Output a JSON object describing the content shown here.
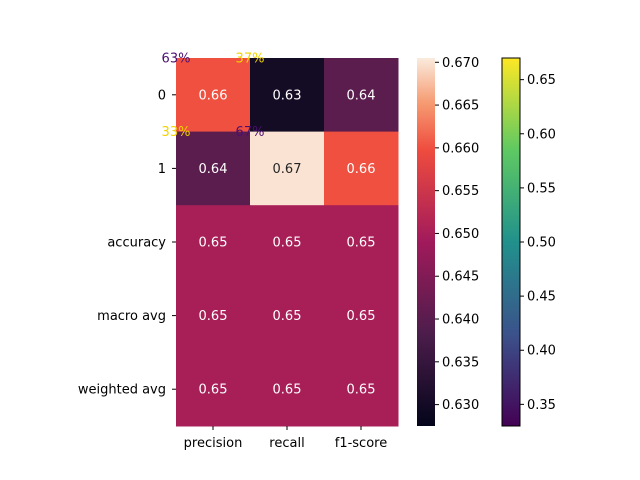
{
  "chart_data": {
    "type": "heatmap",
    "rows": [
      "0",
      "1",
      "accuracy",
      "macro avg",
      "weighted avg"
    ],
    "columns": [
      "precision",
      "recall",
      "f1-score"
    ],
    "values": [
      [
        0.66,
        0.63,
        0.64
      ],
      [
        0.64,
        0.67,
        0.66
      ],
      [
        0.65,
        0.65,
        0.65
      ],
      [
        0.65,
        0.65,
        0.65
      ],
      [
        0.65,
        0.65,
        0.65
      ]
    ],
    "cell_labels": [
      [
        "0.66",
        "0.63",
        "0.64"
      ],
      [
        "0.64",
        "0.67",
        "0.66"
      ],
      [
        "0.65",
        "0.65",
        "0.65"
      ],
      [
        "0.65",
        "0.65",
        "0.65"
      ],
      [
        "0.65",
        "0.65",
        "0.65"
      ]
    ],
    "overlay_labels": [
      {
        "text": "63%",
        "row": 0,
        "col": 0,
        "color": "#4b0f70"
      },
      {
        "text": "37%",
        "row": 0,
        "col": 1,
        "color": "#f2d300"
      },
      {
        "text": "33%",
        "row": 1,
        "col": 0,
        "color": "#f2d300"
      },
      {
        "text": "67%",
        "row": 1,
        "col": 1,
        "color": "#4b0f70"
      }
    ],
    "colorbars": [
      {
        "colormap": "rocket",
        "range": [
          0.6275,
          0.6705
        ],
        "ticks": [
          0.63,
          0.635,
          0.64,
          0.645,
          0.65,
          0.655,
          0.66,
          0.665,
          0.67
        ],
        "tick_labels": [
          "0.630",
          "0.635",
          "0.640",
          "0.645",
          "0.650",
          "0.655",
          "0.660",
          "0.665",
          "0.670"
        ]
      },
      {
        "colormap": "viridis",
        "range": [
          0.33,
          0.67
        ],
        "ticks": [
          0.35,
          0.4,
          0.45,
          0.5,
          0.55,
          0.6,
          0.65
        ],
        "tick_labels": [
          "0.35",
          "0.40",
          "0.45",
          "0.50",
          "0.55",
          "0.60",
          "0.65"
        ]
      }
    ]
  }
}
